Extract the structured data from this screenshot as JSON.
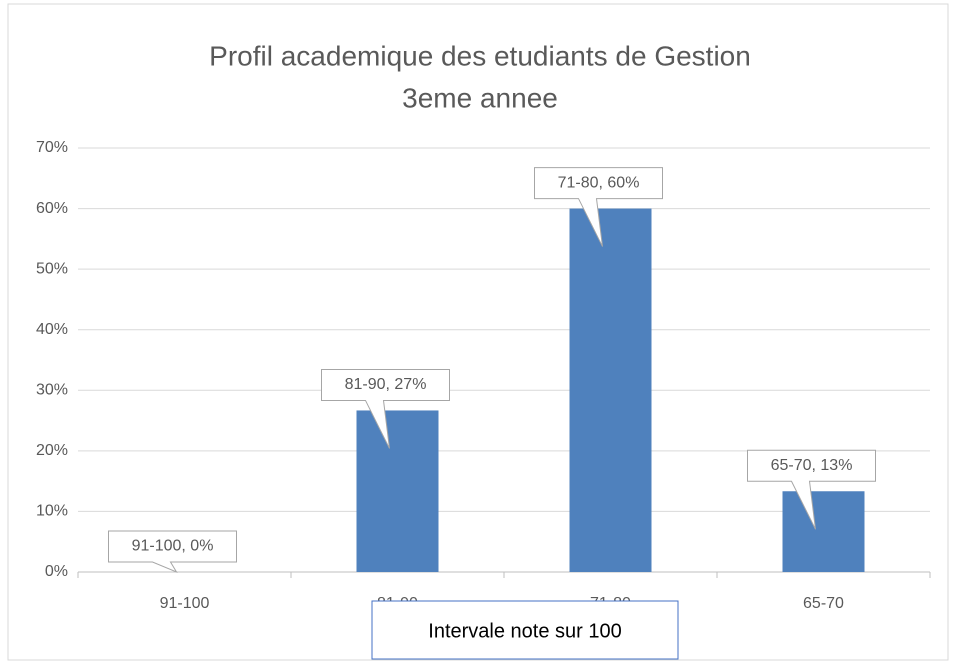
{
  "chart_data": {
    "type": "bar",
    "title": [
      "Profil academique des etudiants de Gestion",
      "3eme annee"
    ],
    "x_label": "Intervale note sur 100",
    "categories": [
      "91-100",
      "81-90",
      "71-80",
      "65-70"
    ],
    "values": [
      0,
      26.67,
      60,
      13.33
    ],
    "value_labels": [
      "91-100, 0%",
      "81-90, 27%",
      "71-80, 60%",
      "65-70, 13%"
    ],
    "color": "#4f81bd",
    "ylim": [
      0,
      70
    ],
    "yticks": [
      {
        "value": 0,
        "label": "0%"
      },
      {
        "value": 10,
        "label": "10%"
      },
      {
        "value": 20,
        "label": "20%"
      },
      {
        "value": 30,
        "label": "30%"
      },
      {
        "value": 40,
        "label": "40%"
      },
      {
        "value": 50,
        "label": "50%"
      },
      {
        "value": 60,
        "label": "60%"
      },
      {
        "value": 70,
        "label": "70%"
      }
    ],
    "grid": true
  }
}
